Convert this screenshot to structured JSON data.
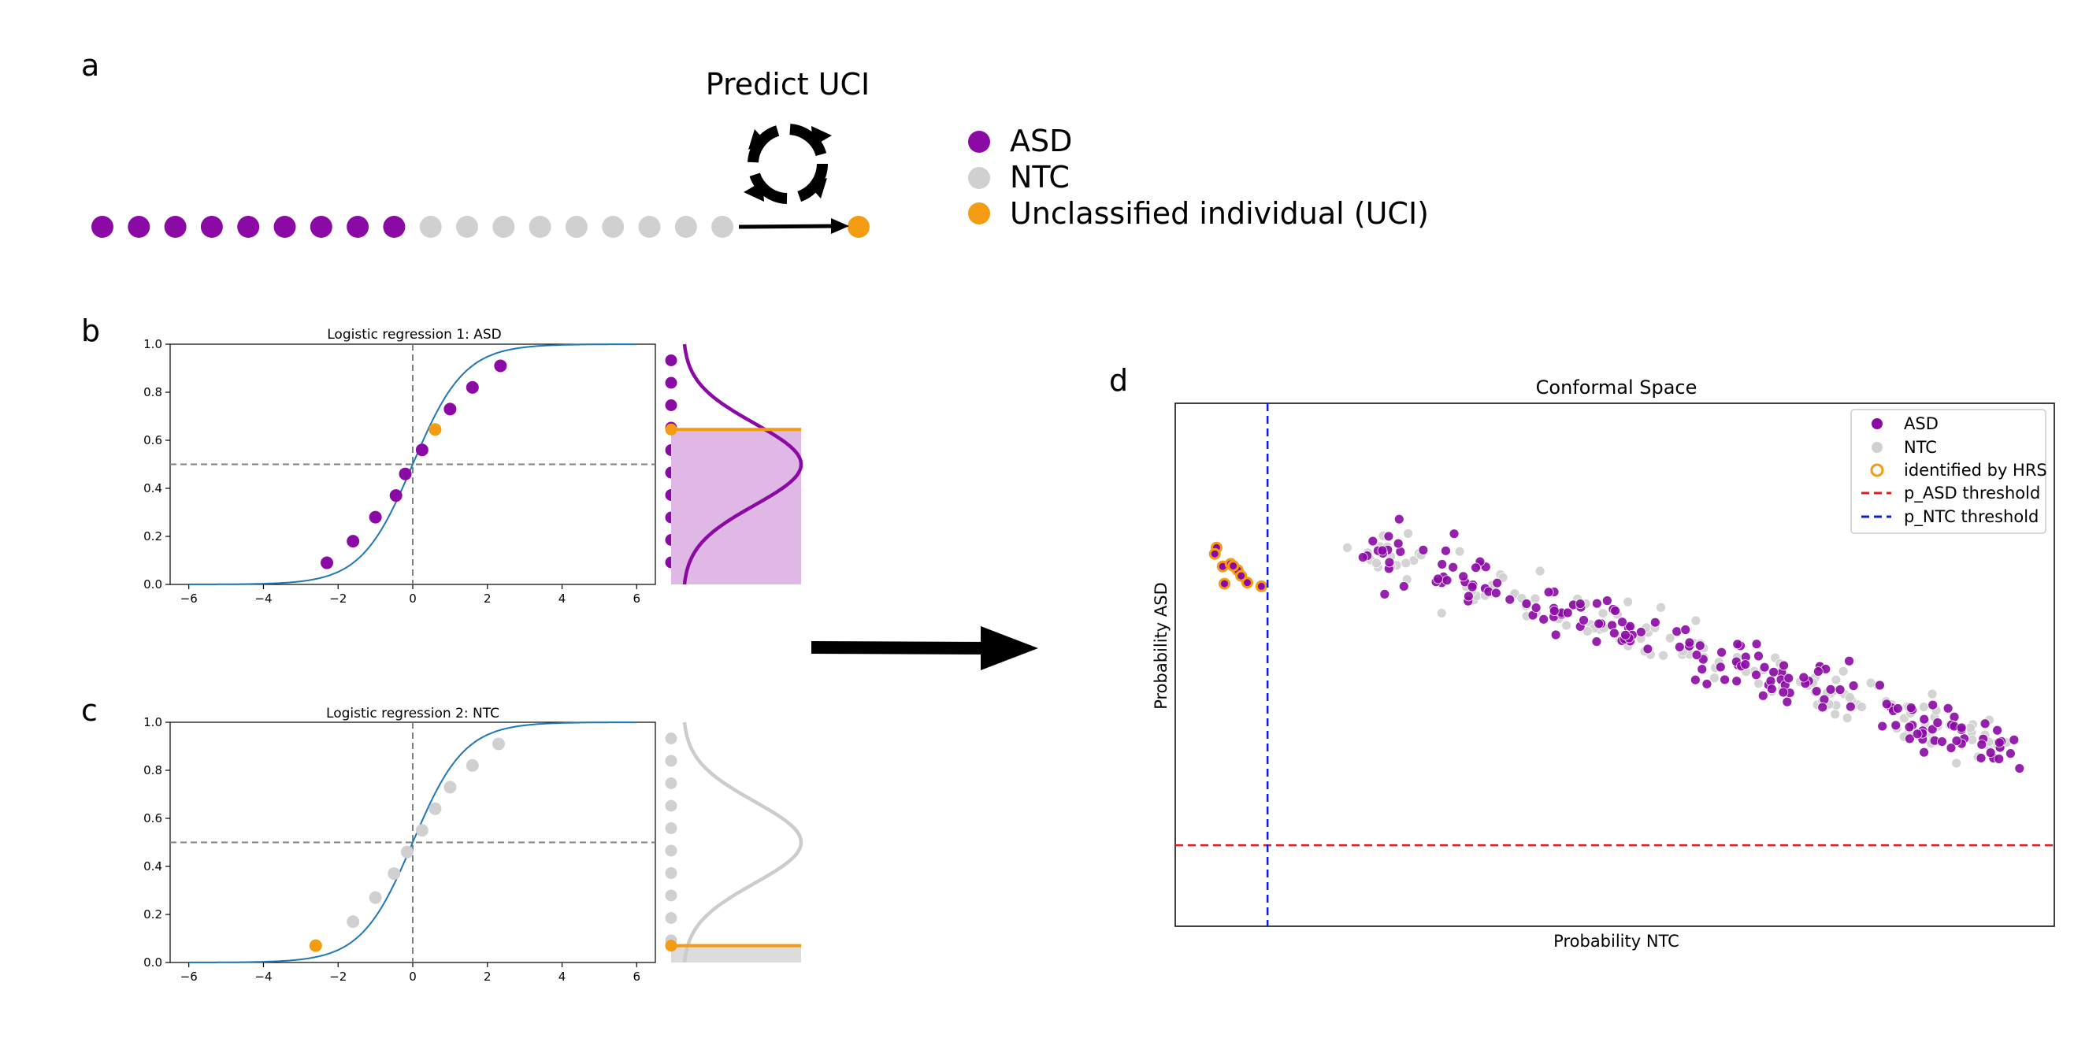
{
  "colors": {
    "asd": "#8b0aa5",
    "ntc": "#d0d0d0",
    "uci": "#f39c12",
    "curve": "#1f77b4",
    "threshold_asd": "#e41a1c",
    "threshold_ntc": "#0b1fd6"
  },
  "panel_a": {
    "letter": "a",
    "title": "Predict UCI",
    "icon": "refresh-cycle-icon",
    "asd_count": 9,
    "ntc_count": 9,
    "legend": [
      "ASD",
      "NTC",
      "Unclassified individual (UCI)"
    ]
  },
  "panel_b": {
    "letter": "b",
    "title": "Logistic regression 1: ASD",
    "kde_label_dot_count": 10
  },
  "panel_c": {
    "letter": "c",
    "title": "Logistic regression 2: NTC",
    "kde_label_dot_count": 10
  },
  "panel_d": {
    "letter": "d",
    "title": "Conformal Space",
    "xlabel": "Probability NTC",
    "ylabel": "Probability ASD",
    "legend": [
      "ASD",
      "NTC",
      "identified by HRS",
      "p_ASD threshold",
      "p_NTC threshold"
    ]
  },
  "chart_data": [
    {
      "type": "line",
      "title": "Logistic regression 1: ASD",
      "xlim": [
        -6.5,
        6.5
      ],
      "ylim": [
        0,
        1
      ],
      "xticks": [
        -6,
        -4,
        -2,
        0,
        2,
        4,
        6
      ],
      "yticks": [
        0.0,
        0.2,
        0.4,
        0.6,
        0.8,
        1.0
      ],
      "curve": "logistic",
      "reference_lines": {
        "x": 0,
        "y": 0.5
      },
      "series": [
        {
          "name": "ASD",
          "x": [
            -2.3,
            -1.6,
            -1.0,
            -0.45,
            -0.2,
            0.25,
            1.0,
            1.6,
            2.35
          ],
          "y": [
            0.09,
            0.18,
            0.28,
            0.37,
            0.46,
            0.56,
            0.73,
            0.82,
            0.91
          ]
        },
        {
          "name": "UCI",
          "x": [
            0.6
          ],
          "y": [
            0.645
          ]
        }
      ],
      "side_density": {
        "peak_y": 0.5,
        "uci_cut": 0.645,
        "shaded_below": true
      }
    },
    {
      "type": "line",
      "title": "Logistic regression 2: NTC",
      "xlim": [
        -6.5,
        6.5
      ],
      "ylim": [
        0,
        1
      ],
      "xticks": [
        -6,
        -4,
        -2,
        0,
        2,
        4,
        6
      ],
      "yticks": [
        0.0,
        0.2,
        0.4,
        0.6,
        0.8,
        1.0
      ],
      "curve": "logistic",
      "reference_lines": {
        "x": 0,
        "y": 0.5
      },
      "series": [
        {
          "name": "NTC",
          "x": [
            -1.6,
            -1.0,
            -0.5,
            -0.15,
            0.25,
            0.6,
            1.0,
            1.6,
            2.3
          ],
          "y": [
            0.17,
            0.27,
            0.37,
            0.46,
            0.55,
            0.64,
            0.73,
            0.82,
            0.91
          ]
        },
        {
          "name": "UCI",
          "x": [
            -2.6
          ],
          "y": [
            0.07
          ]
        }
      ],
      "side_density": {
        "peak_y": 0.5,
        "uci_cut": 0.07,
        "shaded_below": true
      }
    },
    {
      "type": "scatter",
      "title": "Conformal Space",
      "xlabel": "Probability NTC",
      "ylabel": "Probability ASD",
      "xlim": [
        0,
        1
      ],
      "ylim": [
        0,
        1
      ],
      "legend_position": "top-right",
      "thresholds": {
        "p_ASD": 0.155,
        "p_NTC": 0.105
      },
      "asd_trend": {
        "x_from": 0.22,
        "x_to": 0.96,
        "y_from": 0.72,
        "y_to": 0.33,
        "n": 180
      },
      "ntc_trend": {
        "x_from": 0.22,
        "x_to": 0.96,
        "y_from": 0.72,
        "y_to": 0.33,
        "n": 150
      },
      "hrs_points": {
        "x": [
          0.047,
          0.045,
          0.054,
          0.063,
          0.071,
          0.056,
          0.082,
          0.075,
          0.066,
          0.098
        ],
        "y": [
          0.724,
          0.712,
          0.688,
          0.693,
          0.681,
          0.655,
          0.657,
          0.67,
          0.689,
          0.65
        ]
      }
    }
  ]
}
